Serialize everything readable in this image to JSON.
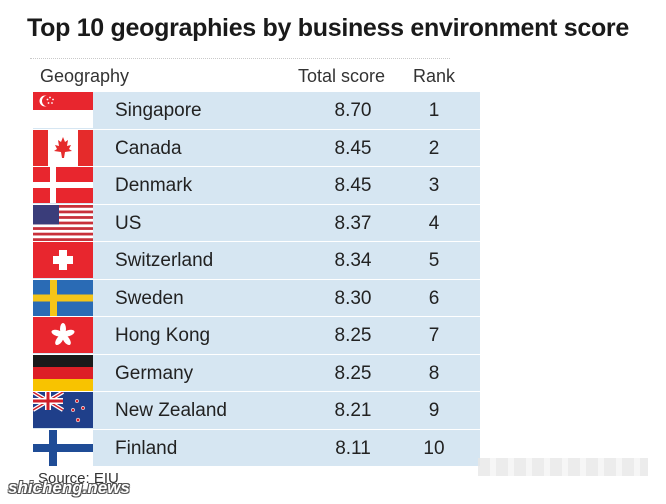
{
  "title": "Top 10 geographies by business environment score",
  "headers": {
    "geography": "Geography",
    "score": "Total score",
    "rank": "Rank"
  },
  "rows": [
    {
      "geography": "Singapore",
      "score": "8.70",
      "rank": "1",
      "flag": "singapore-flag-icon"
    },
    {
      "geography": "Canada",
      "score": "8.45",
      "rank": "2",
      "flag": "canada-flag-icon"
    },
    {
      "geography": "Denmark",
      "score": "8.45",
      "rank": "3",
      "flag": "denmark-flag-icon"
    },
    {
      "geography": "US",
      "score": "8.37",
      "rank": "4",
      "flag": "us-flag-icon"
    },
    {
      "geography": "Switzerland",
      "score": "8.34",
      "rank": "5",
      "flag": "switzerland-flag-icon"
    },
    {
      "geography": "Sweden",
      "score": "8.30",
      "rank": "6",
      "flag": "sweden-flag-icon"
    },
    {
      "geography": "Hong Kong",
      "score": "8.25",
      "rank": "7",
      "flag": "hong-kong-flag-icon"
    },
    {
      "geography": "Germany",
      "score": "8.25",
      "rank": "8",
      "flag": "germany-flag-icon"
    },
    {
      "geography": "New Zealand",
      "score": "8.21",
      "rank": "9",
      "flag": "new-zealand-flag-icon"
    },
    {
      "geography": "Finland",
      "score": "8.11",
      "rank": "10",
      "flag": "finland-flag-icon"
    }
  ],
  "source": "Source: EIU",
  "watermark": "shicheng.news",
  "colors": {
    "row_background": "#d6e6f2",
    "title": "#1a1a1a"
  }
}
